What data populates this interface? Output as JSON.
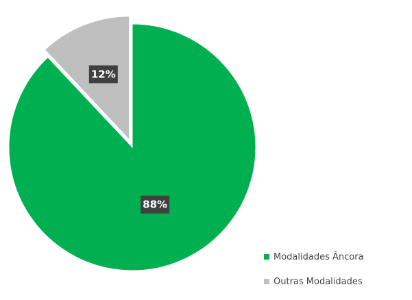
{
  "chart_data": {
    "type": "pie",
    "title": "",
    "start_angle_deg": 0,
    "direction": "clockwise",
    "exploded_slice": "Outras Modalidades",
    "slices": [
      {
        "label": "Modalidades Âncora",
        "value": 88,
        "data_label": "88%",
        "color": "#00b050"
      },
      {
        "label": "Outras Modalidades",
        "value": 12,
        "data_label": "12%",
        "color": "#bfbfbf"
      }
    ],
    "legend": {
      "position": "bottom-right",
      "entries": [
        "Modalidades Âncora",
        "Outras Modalidades"
      ]
    },
    "data_label_style": {
      "background": "#404040",
      "text_color": "#ffffff"
    }
  }
}
